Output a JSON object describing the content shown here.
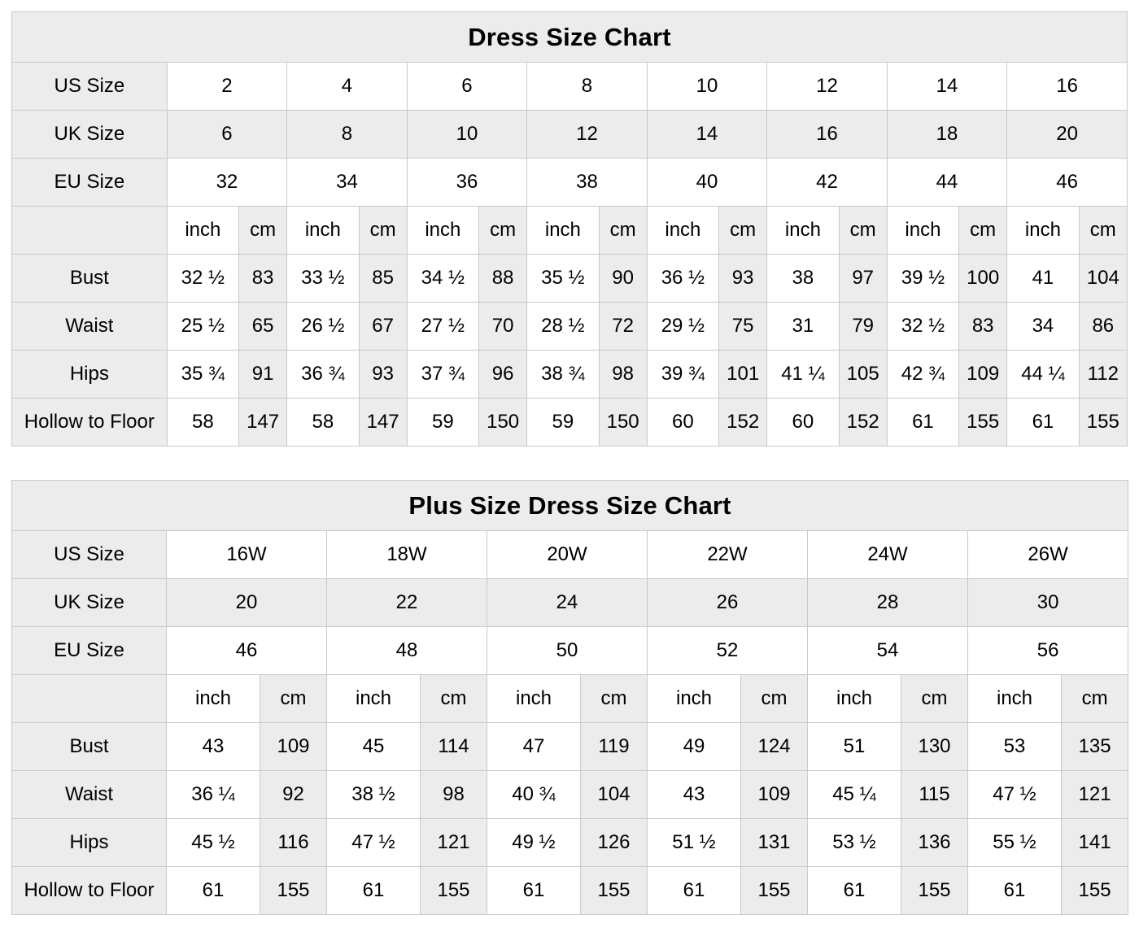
{
  "colors": {
    "page_background": "#ffffff",
    "shaded_cell_background": "#ececec",
    "cell_border": "#c9c9c9",
    "text": "#000000"
  },
  "units": {
    "inch": "inch",
    "cm": "cm"
  },
  "tables": [
    {
      "title": "Dress Size Chart",
      "unit_row_label": "",
      "size_rows": [
        {
          "label": "US Size",
          "shaded": false,
          "values": [
            "2",
            "4",
            "6",
            "8",
            "10",
            "12",
            "14",
            "16"
          ]
        },
        {
          "label": "UK Size",
          "shaded": true,
          "values": [
            "6",
            "8",
            "10",
            "12",
            "14",
            "16",
            "18",
            "20"
          ]
        },
        {
          "label": "EU Size",
          "shaded": false,
          "values": [
            "32",
            "34",
            "36",
            "38",
            "40",
            "42",
            "44",
            "46"
          ]
        }
      ],
      "measure_rows": [
        {
          "label": "Bust",
          "pairs": [
            [
              "32 ½",
              "83"
            ],
            [
              "33 ½",
              "85"
            ],
            [
              "34 ½",
              "88"
            ],
            [
              "35 ½",
              "90"
            ],
            [
              "36 ½",
              "93"
            ],
            [
              "38",
              "97"
            ],
            [
              "39 ½",
              "100"
            ],
            [
              "41",
              "104"
            ]
          ]
        },
        {
          "label": "Waist",
          "pairs": [
            [
              "25 ½",
              "65"
            ],
            [
              "26 ½",
              "67"
            ],
            [
              "27 ½",
              "70"
            ],
            [
              "28 ½",
              "72"
            ],
            [
              "29 ½",
              "75"
            ],
            [
              "31",
              "79"
            ],
            [
              "32 ½",
              "83"
            ],
            [
              "34",
              "86"
            ]
          ]
        },
        {
          "label": "Hips",
          "pairs": [
            [
              "35 ¾",
              "91"
            ],
            [
              "36 ¾",
              "93"
            ],
            [
              "37 ¾",
              "96"
            ],
            [
              "38 ¾",
              "98"
            ],
            [
              "39 ¾",
              "101"
            ],
            [
              "41 ¼",
              "105"
            ],
            [
              "42 ¾",
              "109"
            ],
            [
              "44 ¼",
              "112"
            ]
          ]
        },
        {
          "label": "Hollow to Floor",
          "pairs": [
            [
              "58",
              "147"
            ],
            [
              "58",
              "147"
            ],
            [
              "59",
              "150"
            ],
            [
              "59",
              "150"
            ],
            [
              "60",
              "152"
            ],
            [
              "60",
              "152"
            ],
            [
              "61",
              "155"
            ],
            [
              "61",
              "155"
            ]
          ]
        }
      ]
    },
    {
      "title": "Plus Size Dress Size Chart",
      "unit_row_label": "",
      "size_rows": [
        {
          "label": "US Size",
          "shaded": false,
          "values": [
            "16W",
            "18W",
            "20W",
            "22W",
            "24W",
            "26W"
          ]
        },
        {
          "label": "UK Size",
          "shaded": true,
          "values": [
            "20",
            "22",
            "24",
            "26",
            "28",
            "30"
          ]
        },
        {
          "label": "EU Size",
          "shaded": false,
          "values": [
            "46",
            "48",
            "50",
            "52",
            "54",
            "56"
          ]
        }
      ],
      "measure_rows": [
        {
          "label": "Bust",
          "pairs": [
            [
              "43",
              "109"
            ],
            [
              "45",
              "114"
            ],
            [
              "47",
              "119"
            ],
            [
              "49",
              "124"
            ],
            [
              "51",
              "130"
            ],
            [
              "53",
              "135"
            ]
          ]
        },
        {
          "label": "Waist",
          "pairs": [
            [
              "36 ¼",
              "92"
            ],
            [
              "38 ½",
              "98"
            ],
            [
              "40 ¾",
              "104"
            ],
            [
              "43",
              "109"
            ],
            [
              "45 ¼",
              "115"
            ],
            [
              "47 ½",
              "121"
            ]
          ]
        },
        {
          "label": "Hips",
          "pairs": [
            [
              "45 ½",
              "116"
            ],
            [
              "47 ½",
              "121"
            ],
            [
              "49 ½",
              "126"
            ],
            [
              "51 ½",
              "131"
            ],
            [
              "53 ½",
              "136"
            ],
            [
              "55 ½",
              "141"
            ]
          ]
        },
        {
          "label": "Hollow to Floor",
          "pairs": [
            [
              "61",
              "155"
            ],
            [
              "61",
              "155"
            ],
            [
              "61",
              "155"
            ],
            [
              "61",
              "155"
            ],
            [
              "61",
              "155"
            ],
            [
              "61",
              "155"
            ]
          ]
        }
      ]
    }
  ]
}
